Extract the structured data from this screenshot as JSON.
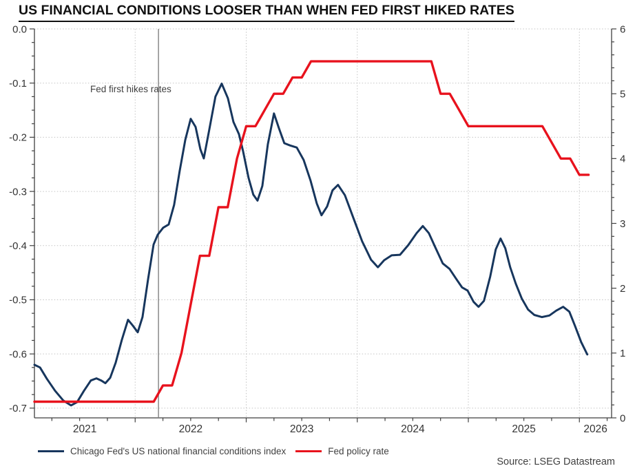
{
  "title": "US FINANCIAL CONDITIONS LOOSER THAN WHEN FED FIRST HIKED RATES",
  "source": "Source: LSEG Datastream",
  "annotation": {
    "text": "Fed first hikes rates",
    "line_x": 2022.21,
    "line_color": "#808080",
    "text_color": "#404040"
  },
  "legend": {
    "items": [
      {
        "label": "Chicago Fed's US national financial conditions index",
        "color": "#17365d"
      },
      {
        "label": "Fed policy rate",
        "color": "#e8121d"
      }
    ]
  },
  "chart_data": {
    "type": "line",
    "title": "US FINANCIAL CONDITIONS LOOSER THAN WHEN FED FIRST HIKED RATES",
    "grid": "dotted",
    "legend_position": "bottom-left",
    "x_axis": {
      "range": [
        2021.093,
        2026.29
      ],
      "year_ticks": [
        2021,
        2022,
        2023,
        2024,
        2025,
        2026
      ],
      "tick_labels": [
        "2021",
        "2022",
        "2023",
        "2024",
        "2025",
        "2026"
      ],
      "minor_step": 0.25
    },
    "y_left": {
      "range": [
        -0.718,
        0.0
      ],
      "ticks": [
        0.0,
        -0.1,
        -0.2,
        -0.3,
        -0.4,
        -0.5,
        -0.6,
        -0.7
      ],
      "tick_labels": [
        "0.0",
        "-0.1",
        "-0.2",
        "-0.3",
        "-0.4",
        "-0.5",
        "-0.6",
        "-0.7"
      ],
      "minor_step": 0.025
    },
    "y_right": {
      "range": [
        0,
        6
      ],
      "ticks": [
        0,
        1,
        2,
        3,
        4,
        5,
        6
      ],
      "tick_labels": [
        "0",
        "1",
        "2",
        "3",
        "4",
        "5",
        "6"
      ],
      "minor_step": 0.2
    },
    "series": [
      {
        "name": "Chicago Fed's US national financial conditions index",
        "axis": "left",
        "color": "#17365d",
        "width": 3,
        "points": [
          [
            2021.093,
            -0.62
          ],
          [
            2021.143,
            -0.625
          ],
          [
            2021.205,
            -0.646
          ],
          [
            2021.279,
            -0.668
          ],
          [
            2021.353,
            -0.686
          ],
          [
            2021.422,
            -0.695
          ],
          [
            2021.477,
            -0.689
          ],
          [
            2021.539,
            -0.668
          ],
          [
            2021.601,
            -0.649
          ],
          [
            2021.651,
            -0.645
          ],
          [
            2021.694,
            -0.649
          ],
          [
            2021.732,
            -0.654
          ],
          [
            2021.775,
            -0.644
          ],
          [
            2021.825,
            -0.616
          ],
          [
            2021.88,
            -0.574
          ],
          [
            2021.936,
            -0.537
          ],
          [
            2021.98,
            -0.548
          ],
          [
            2022.023,
            -0.56
          ],
          [
            2022.066,
            -0.532
          ],
          [
            2022.116,
            -0.462
          ],
          [
            2022.166,
            -0.398
          ],
          [
            2022.203,
            -0.38
          ],
          [
            2022.252,
            -0.367
          ],
          [
            2022.302,
            -0.361
          ],
          [
            2022.351,
            -0.325
          ],
          [
            2022.401,
            -0.262
          ],
          [
            2022.451,
            -0.205
          ],
          [
            2022.5,
            -0.166
          ],
          [
            2022.544,
            -0.181
          ],
          [
            2022.587,
            -0.222
          ],
          [
            2022.618,
            -0.239
          ],
          [
            2022.668,
            -0.185
          ],
          [
            2022.723,
            -0.125
          ],
          [
            2022.779,
            -0.101
          ],
          [
            2022.835,
            -0.128
          ],
          [
            2022.885,
            -0.172
          ],
          [
            2022.934,
            -0.194
          ],
          [
            2022.971,
            -0.225
          ],
          [
            2023.021,
            -0.275
          ],
          [
            2023.064,
            -0.306
          ],
          [
            2023.102,
            -0.317
          ],
          [
            2023.145,
            -0.29
          ],
          [
            2023.195,
            -0.213
          ],
          [
            2023.25,
            -0.156
          ],
          [
            2023.294,
            -0.183
          ],
          [
            2023.343,
            -0.211
          ],
          [
            2023.393,
            -0.215
          ],
          [
            2023.455,
            -0.219
          ],
          [
            2023.517,
            -0.242
          ],
          [
            2023.579,
            -0.28
          ],
          [
            2023.635,
            -0.322
          ],
          [
            2023.678,
            -0.344
          ],
          [
            2023.728,
            -0.328
          ],
          [
            2023.777,
            -0.298
          ],
          [
            2023.827,
            -0.288
          ],
          [
            2023.889,
            -0.307
          ],
          [
            2023.963,
            -0.348
          ],
          [
            2024.044,
            -0.392
          ],
          [
            2024.124,
            -0.426
          ],
          [
            2024.186,
            -0.44
          ],
          [
            2024.242,
            -0.427
          ],
          [
            2024.31,
            -0.418
          ],
          [
            2024.385,
            -0.417
          ],
          [
            2024.459,
            -0.399
          ],
          [
            2024.534,
            -0.377
          ],
          [
            2024.59,
            -0.364
          ],
          [
            2024.645,
            -0.377
          ],
          [
            2024.707,
            -0.405
          ],
          [
            2024.77,
            -0.433
          ],
          [
            2024.831,
            -0.443
          ],
          [
            2024.893,
            -0.462
          ],
          [
            2024.943,
            -0.477
          ],
          [
            2024.993,
            -0.483
          ],
          [
            2025.048,
            -0.504
          ],
          [
            2025.092,
            -0.513
          ],
          [
            2025.141,
            -0.502
          ],
          [
            2025.197,
            -0.457
          ],
          [
            2025.247,
            -0.407
          ],
          [
            2025.29,
            -0.387
          ],
          [
            2025.333,
            -0.405
          ],
          [
            2025.377,
            -0.44
          ],
          [
            2025.427,
            -0.47
          ],
          [
            2025.482,
            -0.498
          ],
          [
            2025.538,
            -0.518
          ],
          [
            2025.594,
            -0.528
          ],
          [
            2025.662,
            -0.532
          ],
          [
            2025.73,
            -0.529
          ],
          [
            2025.792,
            -0.52
          ],
          [
            2025.854,
            -0.513
          ],
          [
            2025.91,
            -0.522
          ],
          [
            2025.96,
            -0.548
          ],
          [
            2026.016,
            -0.578
          ],
          [
            2026.071,
            -0.601
          ]
        ]
      },
      {
        "name": "Fed policy rate",
        "axis": "right",
        "color": "#e8121d",
        "width": 3.4,
        "points": [
          [
            2021.093,
            0.25
          ],
          [
            2022.167,
            0.25
          ],
          [
            2022.25,
            0.5
          ],
          [
            2022.333,
            0.5
          ],
          [
            2022.417,
            1.0
          ],
          [
            2022.5,
            1.75
          ],
          [
            2022.583,
            2.5
          ],
          [
            2022.667,
            2.5
          ],
          [
            2022.75,
            3.25
          ],
          [
            2022.833,
            3.25
          ],
          [
            2022.917,
            4.0
          ],
          [
            2023.0,
            4.5
          ],
          [
            2023.083,
            4.5
          ],
          [
            2023.167,
            4.75
          ],
          [
            2023.25,
            5.0
          ],
          [
            2023.333,
            5.0
          ],
          [
            2023.417,
            5.25
          ],
          [
            2023.5,
            5.25
          ],
          [
            2023.583,
            5.5
          ],
          [
            2024.667,
            5.5
          ],
          [
            2024.75,
            5.0
          ],
          [
            2024.833,
            5.0
          ],
          [
            2024.917,
            4.75
          ],
          [
            2025.0,
            4.5
          ],
          [
            2025.667,
            4.5
          ],
          [
            2025.75,
            4.25
          ],
          [
            2025.833,
            4.0
          ],
          [
            2025.917,
            4.0
          ],
          [
            2026.0,
            3.75
          ],
          [
            2026.083,
            3.75
          ]
        ]
      }
    ]
  }
}
